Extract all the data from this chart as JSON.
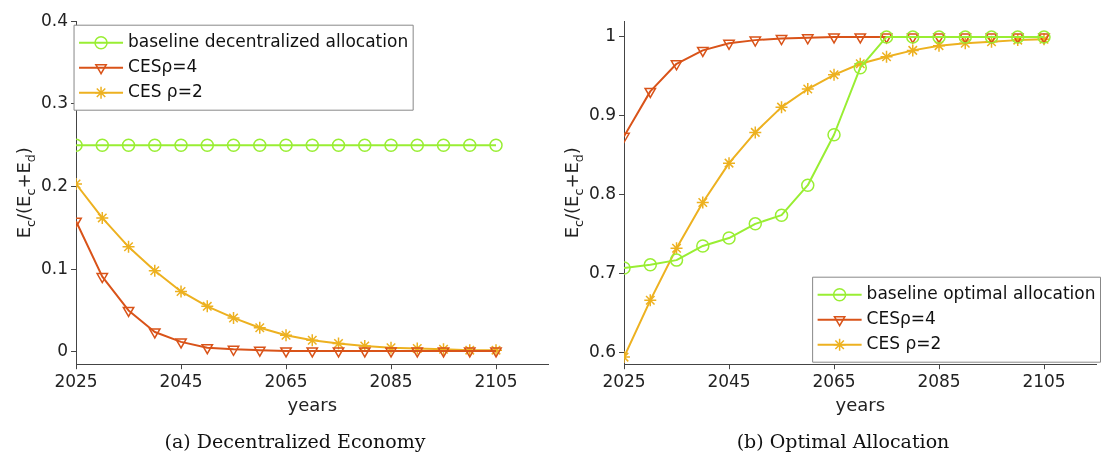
{
  "chart_data": [
    {
      "type": "line",
      "title": "(a) Decentralized Economy",
      "xlabel": "years",
      "ylabel": "E$_{c}$/(E$_{c}$+E$_{d}$)",
      "x": [
        2025,
        2030,
        2035,
        2040,
        2045,
        2050,
        2055,
        2060,
        2065,
        2070,
        2075,
        2080,
        2085,
        2090,
        2095,
        2100,
        2105
      ],
      "xlim": [
        2025,
        2115
      ],
      "xticks": [
        2025,
        2045,
        2065,
        2085,
        2105
      ],
      "ylim": [
        -0.015,
        0.4
      ],
      "yticks": [
        0,
        0.1,
        0.2,
        0.3,
        0.4
      ],
      "grid": false,
      "legend": "top left",
      "line_style": "solid",
      "series": [
        {
          "name": "baseline decentralized allocation",
          "color": "#99ee33",
          "marker": "circle",
          "values": [
            0.25,
            0.25,
            0.25,
            0.25,
            0.25,
            0.25,
            0.25,
            0.25,
            0.25,
            0.25,
            0.25,
            0.25,
            0.25,
            0.25,
            0.25,
            0.25,
            0.25
          ]
        },
        {
          "name": "CESρ=4",
          "color": "#d95319",
          "marker": "triangle",
          "values": [
            0.158,
            0.091,
            0.05,
            0.024,
            0.012,
            0.005,
            0.003,
            0.002,
            0.001,
            0.001,
            0.001,
            0.001,
            0.001,
            0.001,
            0.001,
            0.001,
            0.001
          ]
        },
        {
          "name": "CES ρ=2",
          "color": "#edb120",
          "marker": "cross",
          "values": [
            0.203,
            0.162,
            0.127,
            0.098,
            0.073,
            0.055,
            0.041,
            0.029,
            0.02,
            0.014,
            0.01,
            0.007,
            0.005,
            0.004,
            0.003,
            0.002,
            0.002
          ]
        }
      ]
    },
    {
      "type": "line",
      "title": "(b) Optimal Allocation",
      "xlabel": "years",
      "ylabel": "E$_{c}$/(E$_{c}$+E$_{d}$)",
      "x": [
        2025,
        2030,
        2035,
        2040,
        2045,
        2050,
        2055,
        2060,
        2065,
        2070,
        2075,
        2080,
        2085,
        2090,
        2095,
        2100,
        2105
      ],
      "xlim": [
        2025,
        2115
      ],
      "xticks": [
        2025,
        2045,
        2065,
        2085,
        2105
      ],
      "ylim": [
        0.585,
        1.02
      ],
      "yticks": [
        0.6,
        0.7,
        0.8,
        0.9,
        1
      ],
      "grid": false,
      "legend": "bottom right",
      "line_style": "solid",
      "series": [
        {
          "name": "baseline optimal allocation",
          "color": "#99ee33",
          "marker": "circle",
          "values": [
            0.707,
            0.711,
            0.717,
            0.735,
            0.745,
            0.763,
            0.774,
            0.812,
            0.876,
            0.961,
            1,
            1,
            1,
            1,
            1,
            1,
            1
          ]
        },
        {
          "name": "CESρ=4",
          "color": "#d95319",
          "marker": "triangle",
          "values": [
            0.874,
            0.931,
            0.966,
            0.983,
            0.992,
            0.996,
            0.998,
            0.999,
            1,
            1,
            1,
            1,
            1,
            1,
            1,
            1,
            1
          ]
        },
        {
          "name": "CES ρ=2",
          "color": "#edb120",
          "marker": "cross",
          "values": [
            0.594,
            0.666,
            0.732,
            0.79,
            0.84,
            0.879,
            0.911,
            0.934,
            0.952,
            0.966,
            0.975,
            0.983,
            0.989,
            0.992,
            0.994,
            0.996,
            0.997
          ]
        }
      ]
    }
  ]
}
